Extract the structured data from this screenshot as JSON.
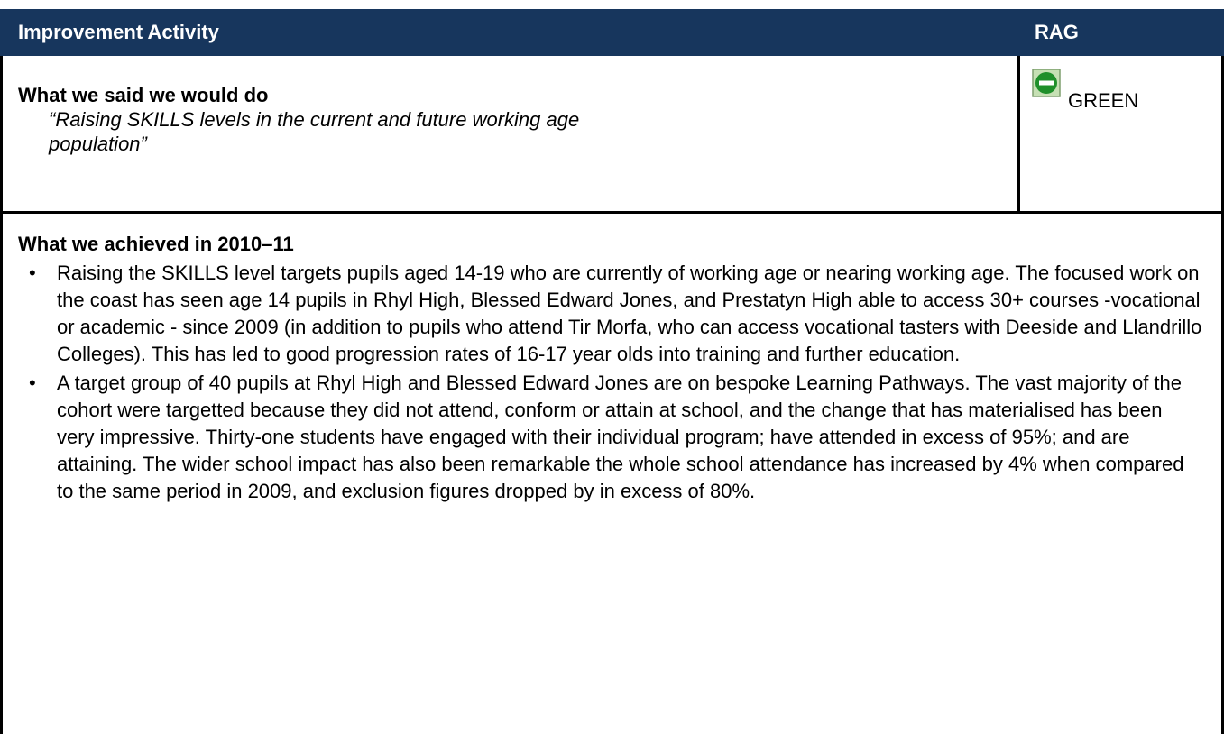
{
  "header": {
    "columns": [
      "Improvement Activity",
      "RAG"
    ]
  },
  "said": {
    "title": "What we said we would do",
    "quote": "“Raising SKILLS levels in the current and future working age population”"
  },
  "rag": {
    "status": "GREEN"
  },
  "achieved": {
    "title": "What we achieved in 2010–11",
    "bullets": [
      "Raising the SKILLS level targets pupils aged 14-19 who are currently of working age or nearing working age.  The focused work on the coast has seen age 14 pupils in Rhyl High, Blessed Edward Jones, and Prestatyn High able to access 30+ courses -vocational or academic - since 2009 (in addition to pupils who attend Tir Morfa, who can access vocational tasters with Deeside and Llandrillo Colleges). This has led to good progression rates of 16-17 year olds into training and further education.",
      "A target group of 40 pupils at Rhyl High and Blessed Edward Jones are on bespoke Learning Pathways.  The vast majority of the cohort were targetted because they did not attend, conform or attain at school, and the change that has materialised has been very impressive.  Thirty-one students have engaged with their individual program; have attended in excess of 95%; and are attaining. The wider school impact has also been remarkable the whole school attendance has increased by 4% when compared to the same period in 2009, and exclusion figures dropped by in excess of 80%."
    ]
  }
}
